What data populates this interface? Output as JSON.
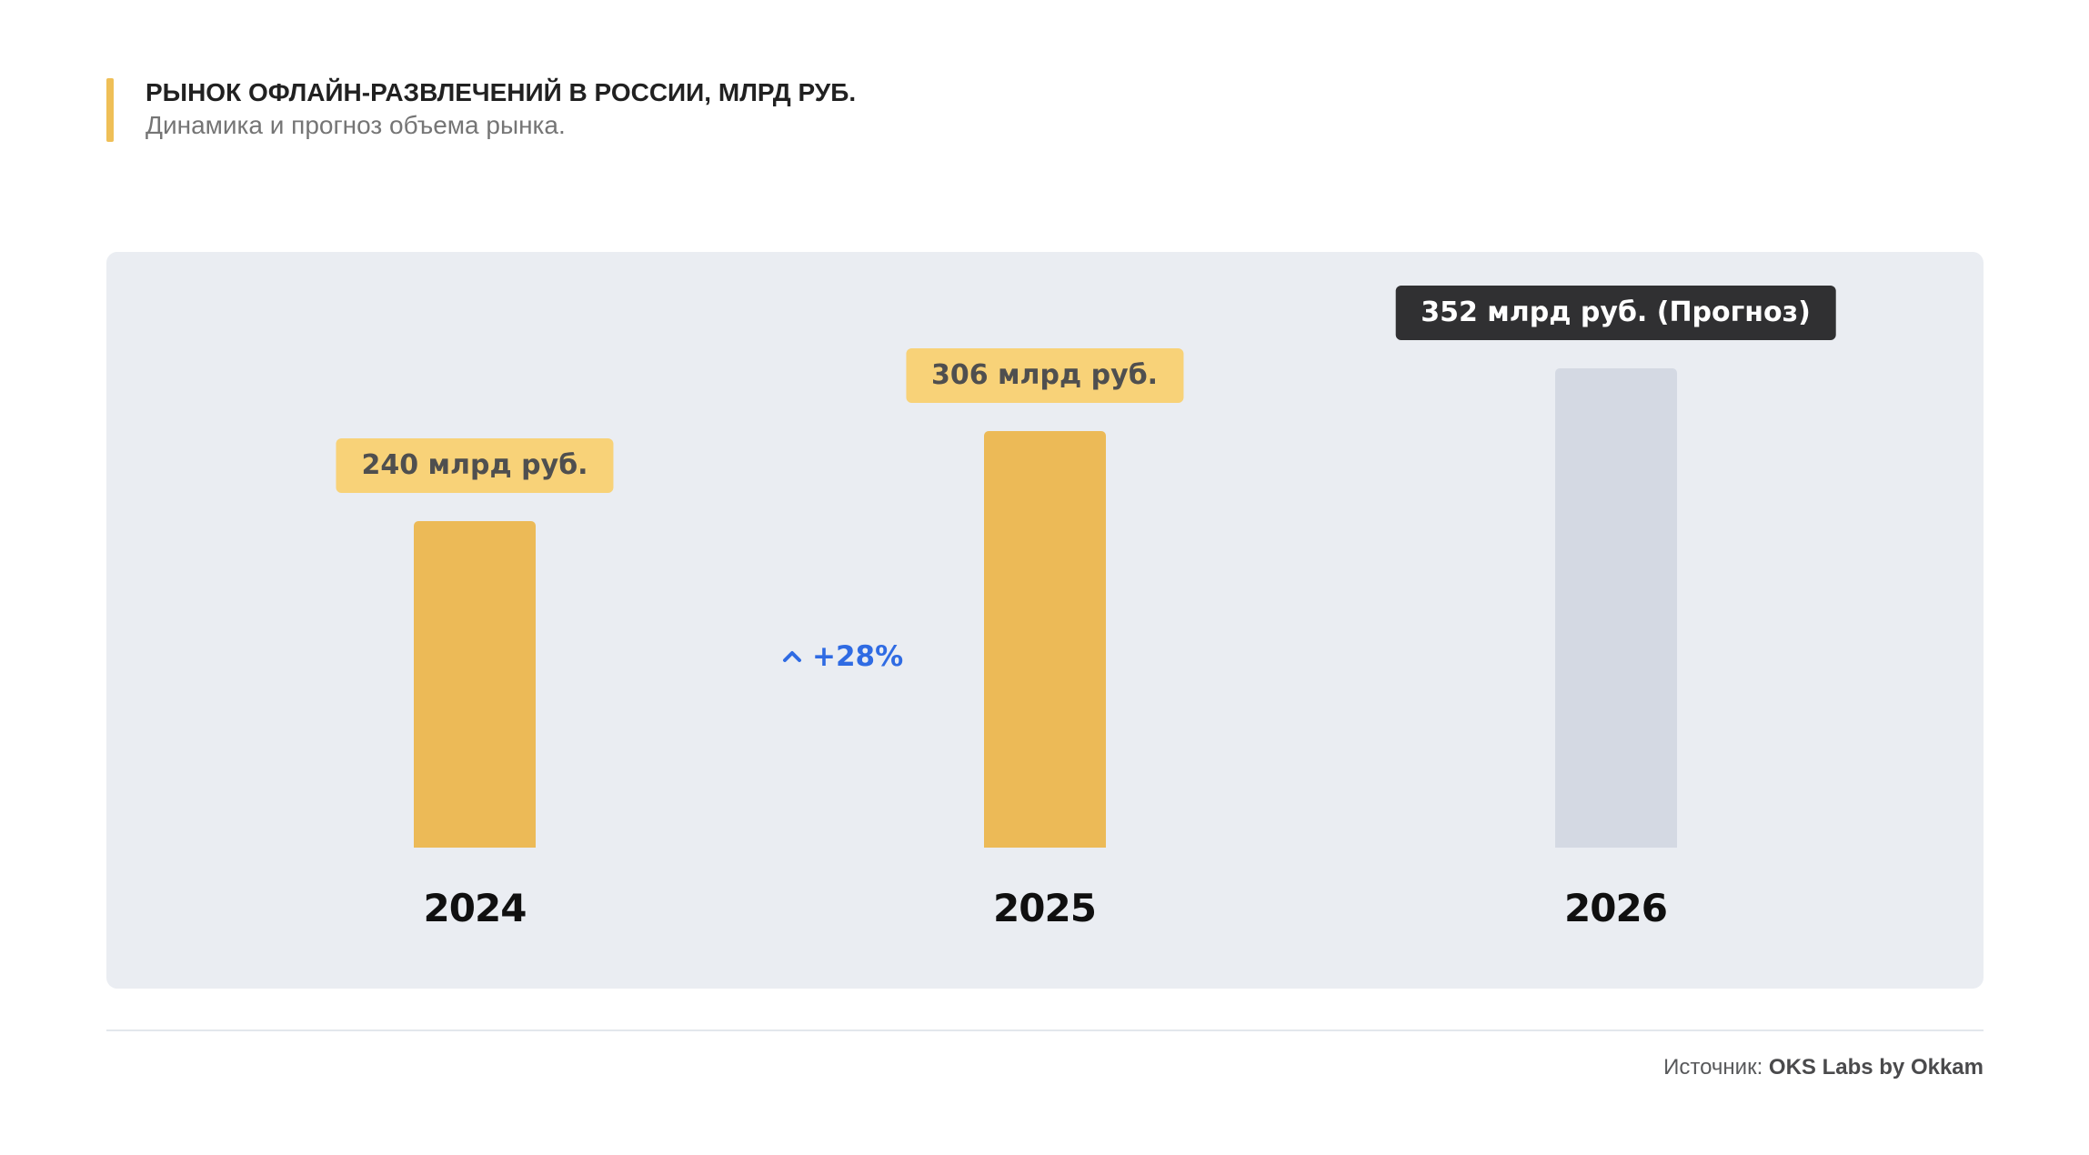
{
  "header": {
    "title": "РЫНОК ОФЛАЙН-РАЗВЛЕЧЕНИЙ В РОССИИ, МЛРД РУБ.",
    "subtitle": "Динамика и прогноз объема рынка.",
    "accent_color": "#EFBF57"
  },
  "chart_data": {
    "type": "bar",
    "title": "РЫНОК ОФЛАЙН-РАЗВЛЕЧЕНИЙ В РОССИИ, МЛРД РУБ.",
    "subtitle": "Динамика и прогноз объема рынка.",
    "categories": [
      "2024",
      "2025",
      "2026"
    ],
    "values": [
      240,
      306,
      352
    ],
    "unit": "млрд руб.",
    "ylim": [
      0,
      390
    ],
    "grid": false,
    "legend": false,
    "bars": [
      {
        "year": "2024",
        "value": 240,
        "label": "240 млрд руб.",
        "type": "actual"
      },
      {
        "year": "2025",
        "value": 306,
        "label": "306 млрд руб.",
        "type": "actual"
      },
      {
        "year": "2026",
        "value": 352,
        "label": "352 млрд руб. (Прогноз)",
        "type": "forecast"
      }
    ],
    "growth": {
      "text": "+28%",
      "icon": "chevron-up",
      "from": "2024",
      "to": "2025"
    },
    "colors": {
      "actual_bar": "#ECBA57",
      "forecast_bar": "#D4D9E3",
      "actual_badge_bg": "#F8D278",
      "actual_badge_text": "#4F4F4F",
      "forecast_badge_bg": "#303032",
      "forecast_badge_text": "#FFFFFF",
      "growth": "#2F6BE3",
      "panel_bg": "#EAEDF2",
      "year_label": "#101010"
    }
  },
  "footer": {
    "source_label": "Источник:",
    "source_value": "OKS Labs by Okkam"
  }
}
